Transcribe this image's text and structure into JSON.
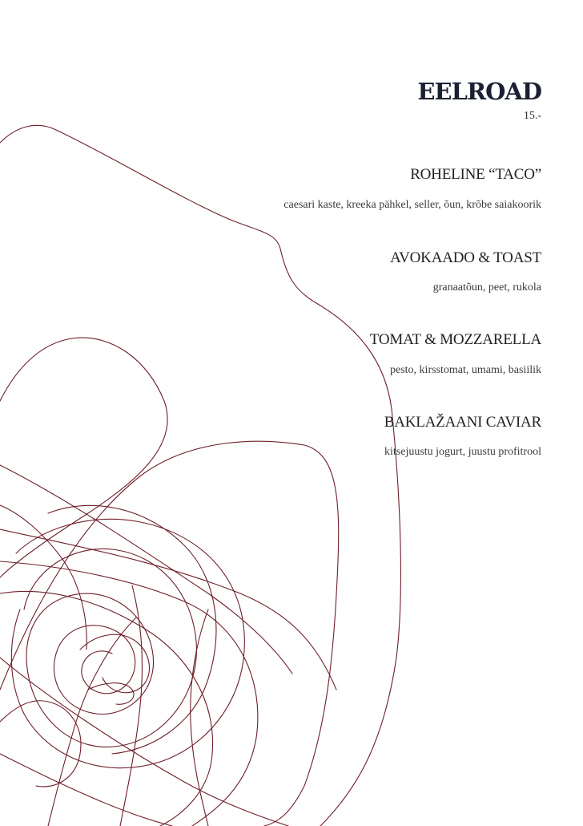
{
  "section": {
    "title": "EELROAD",
    "price": "15.-"
  },
  "items": [
    {
      "name": "ROHELINE “TACO”",
      "description": "caesari kaste, kreeka pähkel, seller, õun, krõbe saiakoorik"
    },
    {
      "name": "AVOKAADO & TOAST",
      "description": "granaatõun, peet, rukola"
    },
    {
      "name": "TOMAT & MOZZARELLA",
      "description": "pesto, kirsstomat, umami, basiilik"
    },
    {
      "name": "BAKLAŽAANI CAVIAR",
      "description": "kitsejuustu jogurt, juustu profitrool"
    }
  ],
  "colors": {
    "title": "#1b2033",
    "text": "#222222",
    "scribble": "#6e1f2a"
  }
}
